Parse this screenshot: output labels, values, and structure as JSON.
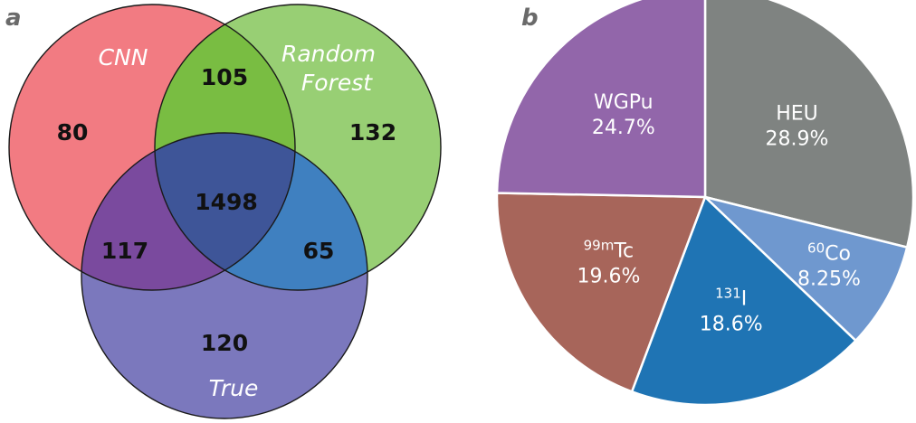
{
  "panels": {
    "a": "a",
    "b": "b"
  },
  "chart_data": [
    {
      "type": "venn",
      "sets": [
        {
          "key": "cnn",
          "name": "CNN",
          "color": "#f27b82"
        },
        {
          "key": "rf",
          "name": "Random Forest",
          "name_lines": [
            "Random",
            "Forest"
          ],
          "color": "#98cf74"
        },
        {
          "key": "true",
          "name": "True",
          "color": "#7b78bd"
        }
      ],
      "overlap_colors": {
        "cnn_rf": "#79bd42",
        "cnn_true": "#7a4a9e",
        "rf_true": "#3f80c0",
        "all": "#3e5598"
      },
      "regions": [
        {
          "key": "cnn_only",
          "sets": [
            "cnn"
          ],
          "count": 80
        },
        {
          "key": "rf_only",
          "sets": [
            "rf"
          ],
          "count": 132
        },
        {
          "key": "true_only",
          "sets": [
            "true"
          ],
          "count": 120
        },
        {
          "key": "cnn_rf",
          "sets": [
            "cnn",
            "rf"
          ],
          "count": 105
        },
        {
          "key": "cnn_true",
          "sets": [
            "cnn",
            "true"
          ],
          "count": 117
        },
        {
          "key": "rf_true",
          "sets": [
            "rf",
            "true"
          ],
          "count": 65
        },
        {
          "key": "all",
          "sets": [
            "cnn",
            "rf",
            "true"
          ],
          "count": 1498
        }
      ]
    },
    {
      "type": "pie",
      "slices": [
        {
          "key": "heu",
          "label": "HEU",
          "value": 28.9,
          "value_text": "28.9%",
          "color": "#7f8381"
        },
        {
          "key": "co60",
          "sup": "60",
          "label": "Co",
          "value": 8.25,
          "value_text": "8.25%",
          "color": "#6f98cf"
        },
        {
          "key": "i131",
          "sup": "131",
          "label": "I",
          "value": 18.6,
          "value_text": "18.6%",
          "color": "#1f74b4"
        },
        {
          "key": "tc99m",
          "sup": "99m",
          "label": "Tc",
          "value": 19.6,
          "value_text": "19.6%",
          "color": "#a7655a"
        },
        {
          "key": "wgpu",
          "label": "WGPu",
          "value": 24.7,
          "value_text": "24.7%",
          "color": "#9266aa"
        }
      ]
    }
  ]
}
